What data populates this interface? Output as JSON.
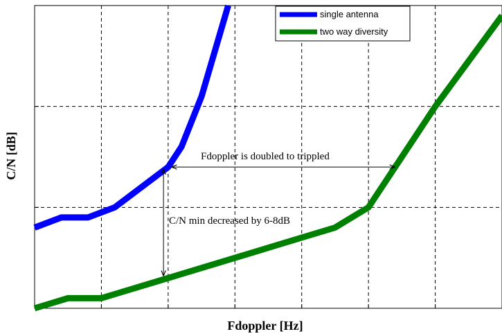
{
  "chart_data": {
    "type": "line",
    "title": "",
    "xlabel": "Fdoppler [Hz]",
    "ylabel": "C/N [dB]",
    "xlim": [
      0,
      7
    ],
    "ylim": [
      0,
      3
    ],
    "grid": true,
    "tick_labels_shown": false,
    "legend_placement": "top-right",
    "series": [
      {
        "name": "single antenna",
        "color": "#0000ff",
        "x": [
          0,
          0.4,
          0.8,
          1.2,
          1.6,
          2.0,
          2.2,
          2.5,
          2.9
        ],
        "y": [
          0.8,
          0.9,
          0.9,
          1.0,
          1.2,
          1.4,
          1.6,
          2.1,
          3.0
        ]
      },
      {
        "name": "two way diversity",
        "color": "#008000",
        "x": [
          0,
          0.5,
          1.0,
          2.0,
          3.0,
          4.0,
          4.5,
          5.0,
          6.0,
          7.0
        ],
        "y": [
          0.0,
          0.1,
          0.1,
          0.3,
          0.5,
          0.7,
          0.8,
          1.0,
          2.0,
          2.9
        ]
      }
    ],
    "annotations": [
      {
        "text": "Fdoppler is doubled to trippled",
        "type": "horizontal-double-arrow"
      },
      {
        "text": "C/N min decreased by 6-8dB",
        "type": "vertical-double-arrow"
      }
    ]
  }
}
